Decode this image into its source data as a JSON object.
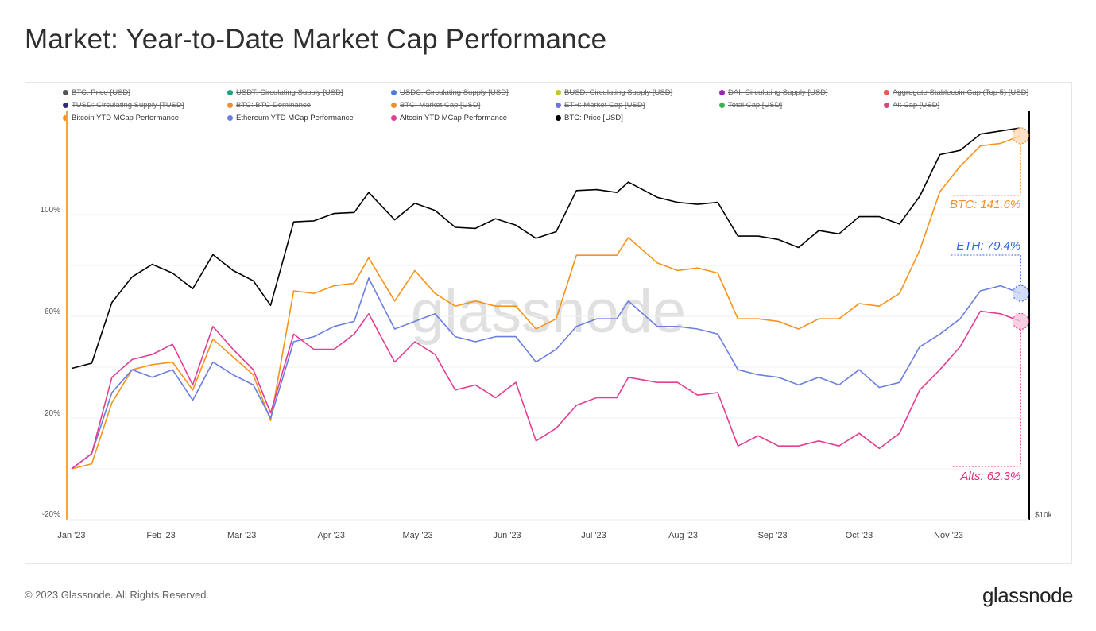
{
  "title": "Market: Year-to-Date Market Cap Performance",
  "footer": {
    "copyright": "© 2023 Glassnode. All Rights Reserved.",
    "logo": "glassnode"
  },
  "watermark": "glassnode",
  "legend": [
    {
      "label": "BTC: Price [USD]",
      "color": "#555555",
      "active": false
    },
    {
      "label": "USDT: Circulating Supply [USD]",
      "color": "#1aa67a",
      "active": false
    },
    {
      "label": "USDC: Circulating Supply [USD]",
      "color": "#4a7bde",
      "active": false
    },
    {
      "label": "BUSD: Circulating Supply [USD]",
      "color": "#c5c82a",
      "active": false
    },
    {
      "label": "DAI: Circulating Supply [USD]",
      "color": "#9a26b8",
      "active": false
    },
    {
      "label": "Aggregate Stablecoin Cap (Top 5) [USD]",
      "color": "#ee5555",
      "active": false
    },
    {
      "label": "TUSD: Circulating Supply [TUSD]",
      "color": "#2b2e7a",
      "active": false
    },
    {
      "label": "BTC: BTC Dominance",
      "color": "#f0902a",
      "active": false
    },
    {
      "label": "BTC: Market Cap [USD]",
      "color": "#f0902a",
      "active": false
    },
    {
      "label": "ETH: Market Cap [USD]",
      "color": "#6b74dd",
      "active": false
    },
    {
      "label": "Total Cap [USD]",
      "color": "#3cb44b",
      "active": false
    },
    {
      "label": "Alt Cap [USD]",
      "color": "#d04a7a",
      "active": false
    },
    {
      "label": "Bitcoin YTD MCap Performance",
      "color": "#f7931a",
      "active": true
    },
    {
      "label": "Ethereum YTD MCap Performance",
      "color": "#6b7fe0",
      "active": true
    },
    {
      "label": "Altcoin YTD MCap Performance",
      "color": "#e33d94",
      "active": true
    },
    {
      "label": "BTC: Price [USD]",
      "color": "#000000",
      "active": true
    }
  ],
  "chart_data": {
    "type": "line",
    "title": "Market: Year-to-Date Market Cap Performance",
    "x_ticks": [
      {
        "date": "2023-01-01",
        "label": "Jan '23"
      },
      {
        "date": "2023-02-01",
        "label": "Feb '23"
      },
      {
        "date": "2023-03-01",
        "label": "Mar '23"
      },
      {
        "date": "2023-04-01",
        "label": "Apr '23"
      },
      {
        "date": "2023-05-01",
        "label": "May '23"
      },
      {
        "date": "2023-06-01",
        "label": "Jun '23"
      },
      {
        "date": "2023-07-01",
        "label": "Jul '23"
      },
      {
        "date": "2023-08-01",
        "label": "Aug '23"
      },
      {
        "date": "2023-09-01",
        "label": "Sep '23"
      },
      {
        "date": "2023-10-01",
        "label": "Oct '23"
      },
      {
        "date": "2023-11-01",
        "label": "Nov '23"
      }
    ],
    "y_left": {
      "unit": "%",
      "range": [
        -20,
        120
      ],
      "ticks": [
        {
          "value": 100,
          "label": "100%"
        },
        {
          "value": 60,
          "label": "60%"
        },
        {
          "value": 20,
          "label": "20%"
        },
        {
          "value": -20,
          "label": "-20%"
        }
      ],
      "gridlines": [
        0,
        20,
        40,
        60,
        80,
        100
      ],
      "grid": true
    },
    "y_right": {
      "scale": "log",
      "ticks": [
        {
          "value": 10000,
          "label": "$10k"
        }
      ]
    },
    "x": [
      "2023-01-01",
      "2023-01-08",
      "2023-01-15",
      "2023-01-22",
      "2023-01-29",
      "2023-02-05",
      "2023-02-12",
      "2023-02-19",
      "2023-02-26",
      "2023-03-05",
      "2023-03-11",
      "2023-03-19",
      "2023-03-26",
      "2023-04-02",
      "2023-04-09",
      "2023-04-14",
      "2023-04-23",
      "2023-04-30",
      "2023-05-07",
      "2023-05-14",
      "2023-05-21",
      "2023-05-28",
      "2023-06-04",
      "2023-06-11",
      "2023-06-18",
      "2023-06-25",
      "2023-07-02",
      "2023-07-09",
      "2023-07-13",
      "2023-07-23",
      "2023-07-30",
      "2023-08-06",
      "2023-08-13",
      "2023-08-20",
      "2023-08-27",
      "2023-09-03",
      "2023-09-10",
      "2023-09-17",
      "2023-09-24",
      "2023-10-01",
      "2023-10-08",
      "2023-10-15",
      "2023-10-22",
      "2023-10-29",
      "2023-11-05",
      "2023-11-12",
      "2023-11-19",
      "2023-11-26"
    ],
    "series": [
      {
        "name": "Bitcoin YTD MCap Performance",
        "axis": "left",
        "color": "#f7931a",
        "values": [
          0,
          2,
          26,
          39,
          41,
          42,
          31,
          51,
          44,
          37,
          19,
          70,
          69,
          72,
          73,
          83,
          66,
          78,
          69,
          64,
          66,
          64,
          64,
          55,
          59,
          84,
          84,
          84,
          91,
          81,
          78,
          79,
          77,
          59,
          59,
          58,
          55,
          59,
          59,
          65,
          64,
          69,
          86,
          109,
          119,
          127,
          128,
          131
        ]
      },
      {
        "name": "Ethereum YTD MCap Performance",
        "axis": "left",
        "color": "#6b7fe0",
        "values": [
          0,
          6,
          30,
          39,
          36,
          39,
          27,
          42,
          37,
          33,
          20,
          50,
          52,
          56,
          58,
          75,
          55,
          58,
          61,
          52,
          50,
          52,
          52,
          42,
          47,
          56,
          59,
          59,
          66,
          56,
          56,
          55,
          53,
          39,
          37,
          36,
          33,
          36,
          33,
          39,
          32,
          34,
          48,
          53,
          59,
          70,
          72,
          69
        ]
      },
      {
        "name": "Altcoin YTD MCap Performance",
        "axis": "left",
        "color": "#e33d94",
        "values": [
          0,
          6,
          36,
          43,
          45,
          49,
          33,
          56,
          47,
          39,
          22,
          53,
          47,
          47,
          53,
          61,
          42,
          50,
          45,
          31,
          33,
          28,
          34,
          11,
          16,
          25,
          28,
          28,
          36,
          34,
          34,
          29,
          30,
          9,
          13,
          9,
          9,
          11,
          9,
          14,
          8,
          14,
          31,
          39,
          48,
          62,
          61,
          58
        ]
      },
      {
        "name": "BTC: Price [USD]",
        "axis": "right",
        "color": "#000000",
        "values": [
          16600,
          16900,
          20800,
          22700,
          23700,
          23000,
          21800,
          24500,
          23200,
          22400,
          20600,
          27400,
          27500,
          28200,
          28300,
          30300,
          27600,
          29200,
          28500,
          26900,
          26800,
          27700,
          27100,
          25900,
          26500,
          30500,
          30600,
          30300,
          31400,
          29800,
          29300,
          29100,
          29300,
          26100,
          26100,
          25800,
          25100,
          26600,
          26300,
          27900,
          27900,
          27200,
          29900,
          34500,
          35000,
          37000,
          37400,
          37800
        ]
      }
    ],
    "annotations": [
      {
        "label": "BTC: 141.6%",
        "color": "#f0902a"
      },
      {
        "label": "ETH: 79.4%",
        "color": "#2f63e0"
      },
      {
        "label": "Alts: 62.3%",
        "color": "#e0307f"
      }
    ]
  }
}
